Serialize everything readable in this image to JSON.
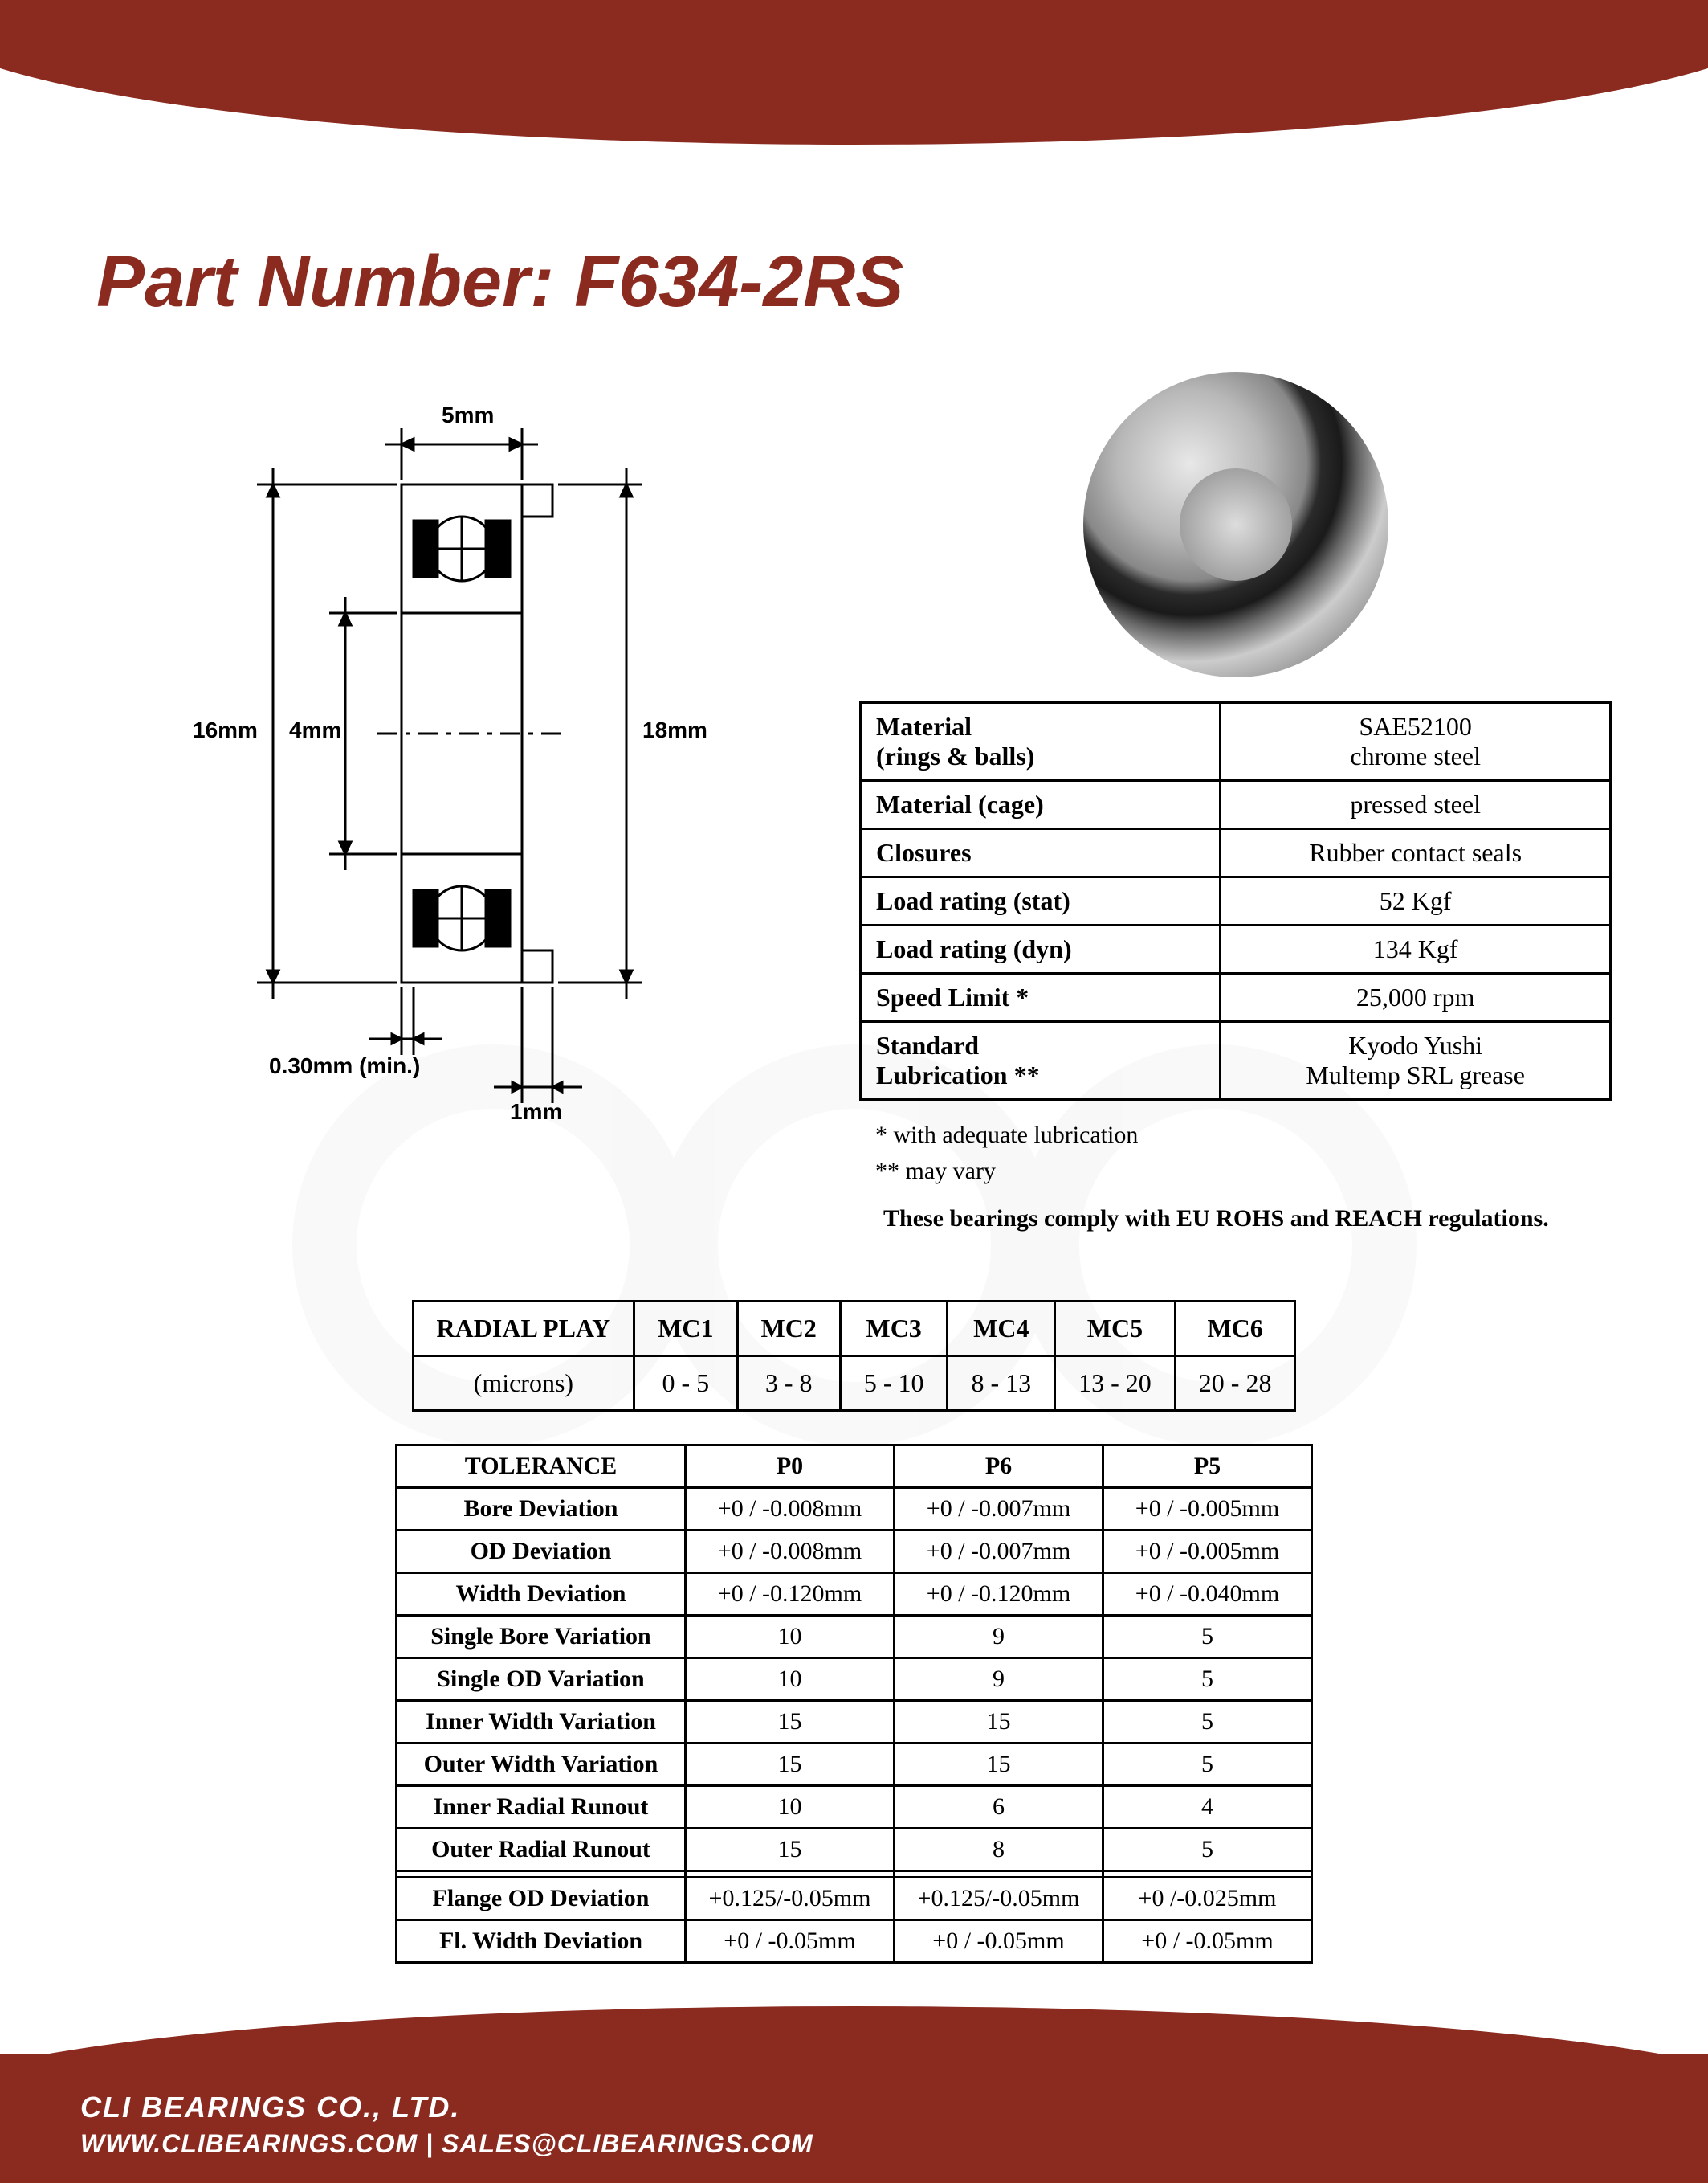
{
  "brand": {
    "name": "CLI",
    "reg": "®",
    "suffix": "BEARINGS"
  },
  "part": {
    "label": "Part Number: ",
    "value": "F634-2RS"
  },
  "diagram": {
    "dims": {
      "width_top": "5mm",
      "od": "16mm",
      "id": "4mm",
      "flange_od": "18mm",
      "chamfer": "0.30mm (min.)",
      "flange_w": "1mm"
    }
  },
  "specs": [
    {
      "k": "Material\n(rings & balls)",
      "v": "SAE52100\nchrome steel"
    },
    {
      "k": "Material (cage)",
      "v": "pressed steel"
    },
    {
      "k": "Closures",
      "v": "Rubber contact seals"
    },
    {
      "k": "Load rating (stat)",
      "v": "52 Kgf"
    },
    {
      "k": "Load rating (dyn)",
      "v": "134 Kgf"
    },
    {
      "k": "Speed Limit *",
      "v": "25,000 rpm"
    },
    {
      "k": "Standard\nLubrication  **",
      "v": "Kyodo Yushi\nMultemp SRL grease"
    }
  ],
  "notes": {
    "n1": "* with adequate lubrication",
    "n2": "** may vary"
  },
  "compliance": "These bearings comply with EU ROHS and REACH  regulations.",
  "radial": {
    "header": [
      "RADIAL PLAY",
      "MC1",
      "MC2",
      "MC3",
      "MC4",
      "MC5",
      "MC6"
    ],
    "row": [
      "(microns)",
      "0 - 5",
      "3 - 8",
      "5 - 10",
      "8 - 13",
      "13 - 20",
      "20 - 28"
    ]
  },
  "tolerance": {
    "header": [
      "TOLERANCE",
      "P0",
      "P6",
      "P5"
    ],
    "rows": [
      [
        "Bore Deviation",
        "+0 / -0.008mm",
        "+0 / -0.007mm",
        "+0 / -0.005mm"
      ],
      [
        "OD Deviation",
        "+0 / -0.008mm",
        "+0 / -0.007mm",
        "+0 / -0.005mm"
      ],
      [
        "Width Deviation",
        "+0 / -0.120mm",
        "+0 / -0.120mm",
        "+0 / -0.040mm"
      ],
      [
        "Single Bore Variation",
        "10",
        "9",
        "5"
      ],
      [
        "Single OD Variation",
        "10",
        "9",
        "5"
      ],
      [
        "Inner Width Variation",
        "15",
        "15",
        "5"
      ],
      [
        "Outer Width Variation",
        "15",
        "15",
        "5"
      ],
      [
        "Inner Radial Runout",
        "10",
        "6",
        "4"
      ],
      [
        "Outer Radial Runout",
        "15",
        "8",
        "5"
      ]
    ],
    "rows2": [
      [
        "Flange OD Deviation",
        "+0.125/-0.05mm",
        "+0.125/-0.05mm",
        "+0 /-0.025mm"
      ],
      [
        "Fl. Width Deviation",
        "+0 / -0.05mm",
        "+0 / -0.05mm",
        "+0 / -0.05mm"
      ]
    ]
  },
  "footer": {
    "company": "CLI BEARINGS CO., LTD.",
    "web": "WWW.CLIBEARINGS.COM",
    "sep": "  |  ",
    "email": "SALES@CLIBEARINGS.COM"
  },
  "colors": {
    "brand": "#8b2a1f",
    "black": "#000000"
  }
}
